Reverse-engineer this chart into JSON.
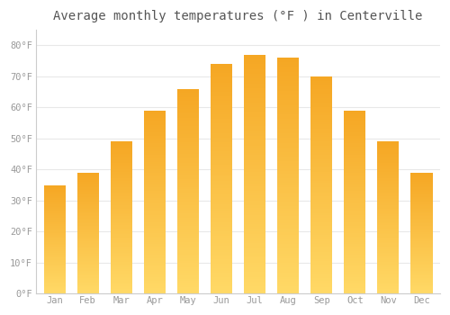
{
  "title": "Average monthly temperatures (°F ) in Centerville",
  "months": [
    "Jan",
    "Feb",
    "Mar",
    "Apr",
    "May",
    "Jun",
    "Jul",
    "Aug",
    "Sep",
    "Oct",
    "Nov",
    "Dec"
  ],
  "values": [
    35,
    39,
    49,
    59,
    66,
    74,
    77,
    76,
    70,
    59,
    49,
    39
  ],
  "bar_color_top": "#F5A623",
  "bar_color_bottom": "#FFD966",
  "background_color": "#FFFFFF",
  "plot_bg_color": "#FFFFFF",
  "grid_color": "#E8E8E8",
  "border_color": "#CCCCCC",
  "yticks": [
    0,
    10,
    20,
    30,
    40,
    50,
    60,
    70,
    80
  ],
  "ylim": [
    0,
    85
  ],
  "title_fontsize": 10,
  "tick_fontsize": 7.5,
  "tick_color": "#999999",
  "title_color": "#555555",
  "font_family": "monospace",
  "bar_width": 0.65
}
